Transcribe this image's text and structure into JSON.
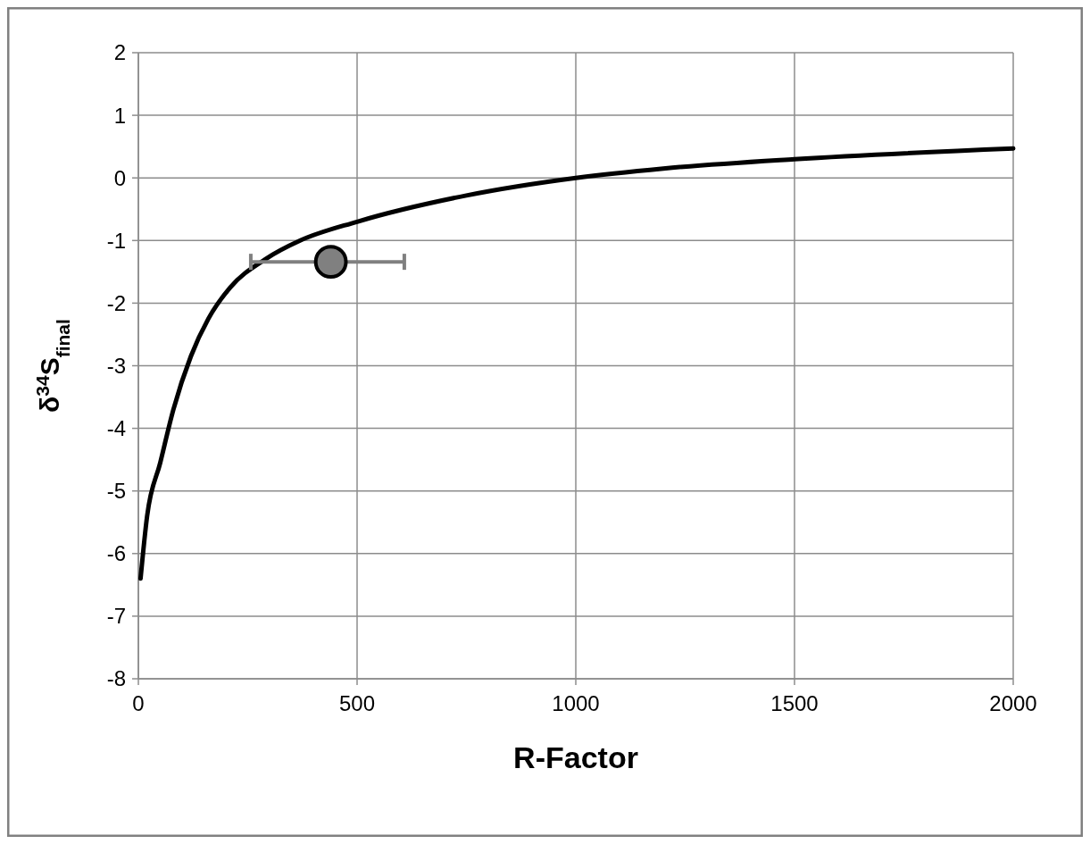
{
  "chart_data": {
    "type": "line",
    "xlabel": "R-Factor",
    "ylabel": "δ$^{34}$S$_{final}$",
    "xlim": [
      0,
      2000
    ],
    "xticks": [
      0,
      500,
      1000,
      1500,
      2000
    ],
    "ylim": [
      -8,
      2
    ],
    "yticks": [
      2,
      1,
      0,
      -1,
      -2,
      -3,
      -4,
      -5,
      -6,
      -7,
      -8
    ],
    "grid": true,
    "series": [
      {
        "color": "#000000",
        "x": [
          5,
          20,
          50,
          80,
          120,
          160,
          210,
          290,
          370,
          500,
          750,
          1000,
          1200,
          1500,
          2000
        ],
        "values": [
          -6.4,
          -5.4,
          -4.55,
          -3.7,
          -2.85,
          -2.25,
          -1.75,
          -1.3,
          -1.0,
          -0.7,
          -0.28,
          0,
          0.15,
          0.3,
          0.47
        ]
      },
      {
        "type": "scatter",
        "marker": "circle",
        "color": "#808080",
        "x": [
          440
        ],
        "values": [
          -1.34
        ],
        "xerrors": [
          [
            257,
            608
          ]
        ]
      }
    ]
  }
}
